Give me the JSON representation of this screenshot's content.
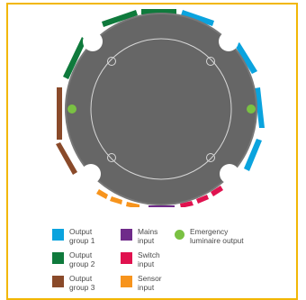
{
  "colors": {
    "frame": "#f2b705",
    "disc": "#666666",
    "disc_ring": "#777777",
    "inner_line": "#d8d8d8",
    "blue": "#0aa3de",
    "green": "#0f7a3c",
    "brown": "#8a4a2a",
    "purple": "#6f2b8a",
    "red": "#e0124f",
    "orange": "#f7941d",
    "emergency": "#7ac143"
  },
  "legend": {
    "output_group_1": {
      "line1": "Output",
      "line2": "group 1"
    },
    "output_group_2": {
      "line1": "Output",
      "line2": "group 2"
    },
    "output_group_3": {
      "line1": "Output",
      "line2": "group 3"
    },
    "mains_input": {
      "line1": "Mains",
      "line2": "input"
    },
    "switch_input": {
      "line1": "Switch",
      "line2": "input"
    },
    "sensor_input": {
      "line1": "Sensor",
      "line2": "input"
    },
    "emergency_output": {
      "line1": "Emergency",
      "line2": "luminaire output"
    }
  }
}
